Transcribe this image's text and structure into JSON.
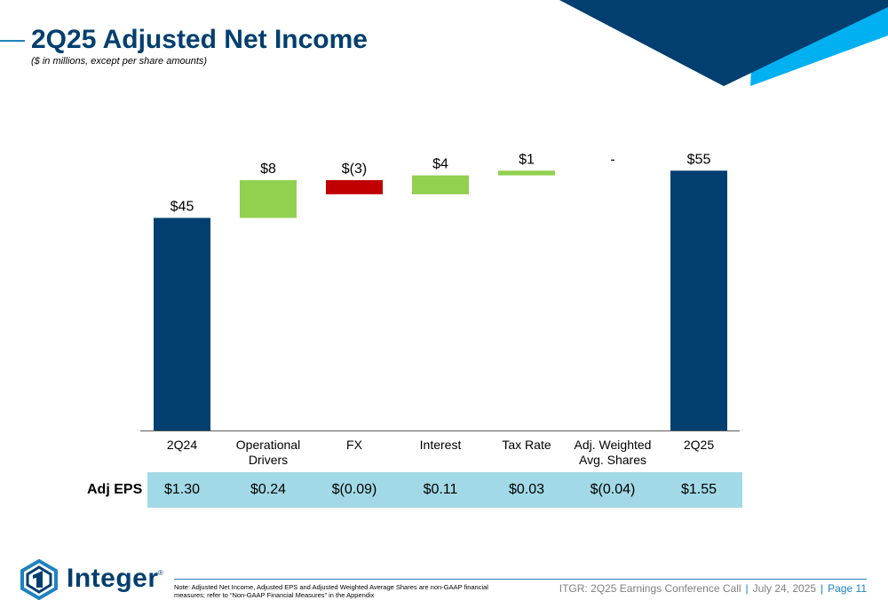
{
  "slide": {
    "title": "2Q25 Adjusted Net Income",
    "subtitle": "($ in millions, except per share amounts)"
  },
  "chart_data": {
    "type": "bar",
    "subtype": "waterfall",
    "title": "2Q25 Adjusted Net Income",
    "categories": [
      "2Q24",
      "Operational\nDrivers",
      "FX",
      "Interest",
      "Tax Rate",
      "Adj. Weighted\nAvg. Shares",
      "2Q25"
    ],
    "values": [
      45,
      8,
      -3,
      4,
      1,
      0,
      55
    ],
    "labels": [
      "$45",
      "$8",
      "$(3)",
      "$4",
      "$1",
      "-",
      "$55"
    ],
    "kinds": [
      "total",
      "delta",
      "delta",
      "delta",
      "delta",
      "delta",
      "total"
    ],
    "ylim": [
      0,
      62
    ],
    "grid": false,
    "colors": {
      "total": "#003f6f",
      "increase": "#92d050",
      "decrease": "#c00000"
    }
  },
  "eps": {
    "label": "Adj EPS",
    "values": [
      "$1.30",
      "$0.24",
      "$(0.09)",
      "$0.11",
      "$0.03",
      "$(0.04)",
      "$1.55"
    ]
  },
  "footer": {
    "logo_text": "Integer",
    "logo_reg": "®",
    "note": "Note: Adjusted Net Income, Adjusted EPS and Adjusted Weighted Average Shares are non-GAAP financial measures; refer to “Non-GAAP Financial Measures” in the Appendix",
    "call": "ITGR: 2Q25 Earnings Conference Call",
    "sep": "|",
    "date": "July 24, 2025",
    "page": "Page 11"
  },
  "colors": {
    "navy": "#003f6f",
    "cyan": "#00b0f0",
    "eps_band": "#a2d9e6",
    "accent_blue": "#1f82c0"
  }
}
